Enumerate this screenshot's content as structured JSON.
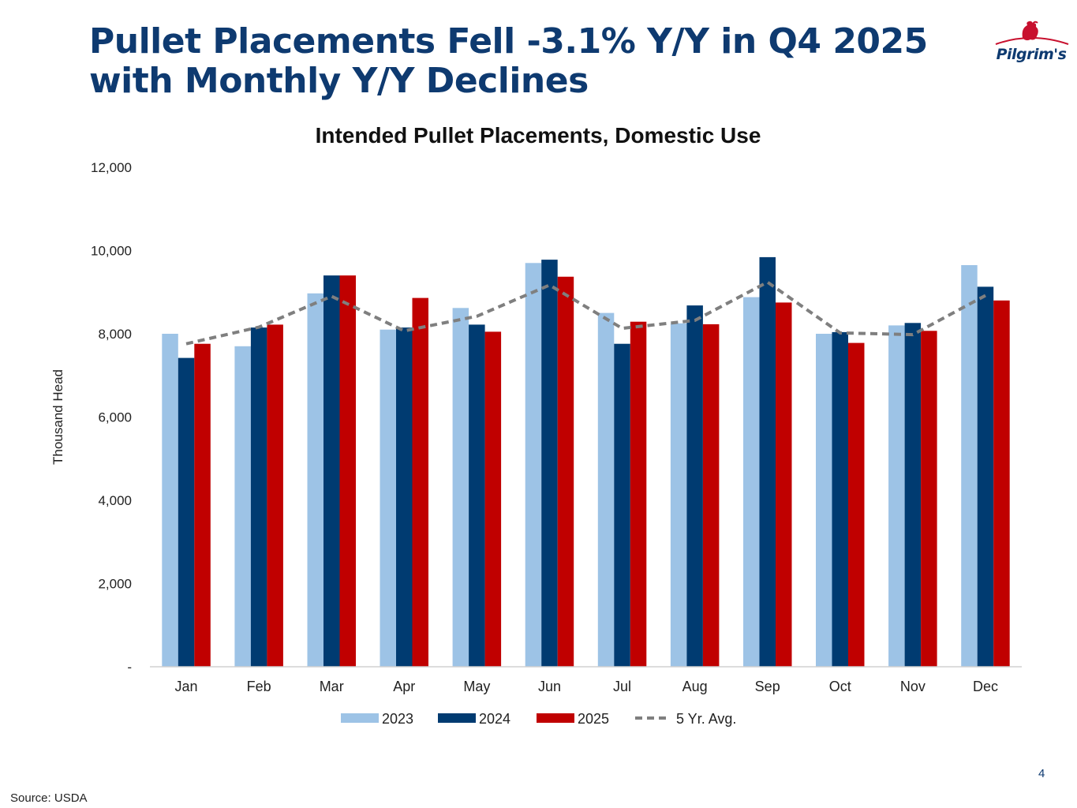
{
  "slide": {
    "title_line1": "Pullet Placements Fell -3.1% Y/Y in Q4 2025",
    "title_line2": "with Monthly Y/Y Declines",
    "logo_text": "Pilgrim's",
    "page_number": "4",
    "source": "Source: USDA"
  },
  "colors": {
    "title": "#0e3a70",
    "series_2023": "#9dc3e6",
    "series_2024": "#003b71",
    "series_2025": "#c00000",
    "avg_line": "#7f7f7f",
    "logo_red": "#c8102e"
  },
  "chart_data": {
    "type": "bar",
    "title": "Intended Pullet Placements, Domestic Use",
    "xlabel": "",
    "ylabel": "Thousand Head",
    "ylim": [
      0,
      12000
    ],
    "yticks": [
      0,
      2000,
      4000,
      6000,
      8000,
      10000,
      12000
    ],
    "ytick_labels": [
      "-",
      "2,000",
      "4,000",
      "6,000",
      "8,000",
      "10,000",
      "12,000"
    ],
    "grid": false,
    "legend_position": "bottom",
    "categories": [
      "Jan",
      "Feb",
      "Mar",
      "Apr",
      "May",
      "Jun",
      "Jul",
      "Aug",
      "Sep",
      "Oct",
      "Nov",
      "Dec"
    ],
    "series": [
      {
        "name": "2023",
        "type": "bar",
        "color": "#9dc3e6",
        "values": [
          8000,
          7700,
          8970,
          8100,
          8620,
          9700,
          8500,
          8250,
          8880,
          8000,
          8200,
          9650
        ]
      },
      {
        "name": "2024",
        "type": "bar",
        "color": "#003b71",
        "values": [
          7420,
          8150,
          9400,
          8150,
          8220,
          9780,
          7760,
          8680,
          9840,
          8040,
          8260,
          9130
        ]
      },
      {
        "name": "2025",
        "type": "bar",
        "color": "#c00000",
        "values": [
          7760,
          8220,
          9400,
          8860,
          8050,
          9370,
          8290,
          8230,
          8750,
          7780,
          8070,
          8800
        ]
      },
      {
        "name": "5 Yr. Avg.",
        "type": "line",
        "style": "dashed",
        "color": "#7f7f7f",
        "values": [
          7760,
          8160,
          8900,
          8070,
          8420,
          9170,
          8130,
          8320,
          9240,
          8020,
          7980,
          8920
        ]
      }
    ]
  }
}
